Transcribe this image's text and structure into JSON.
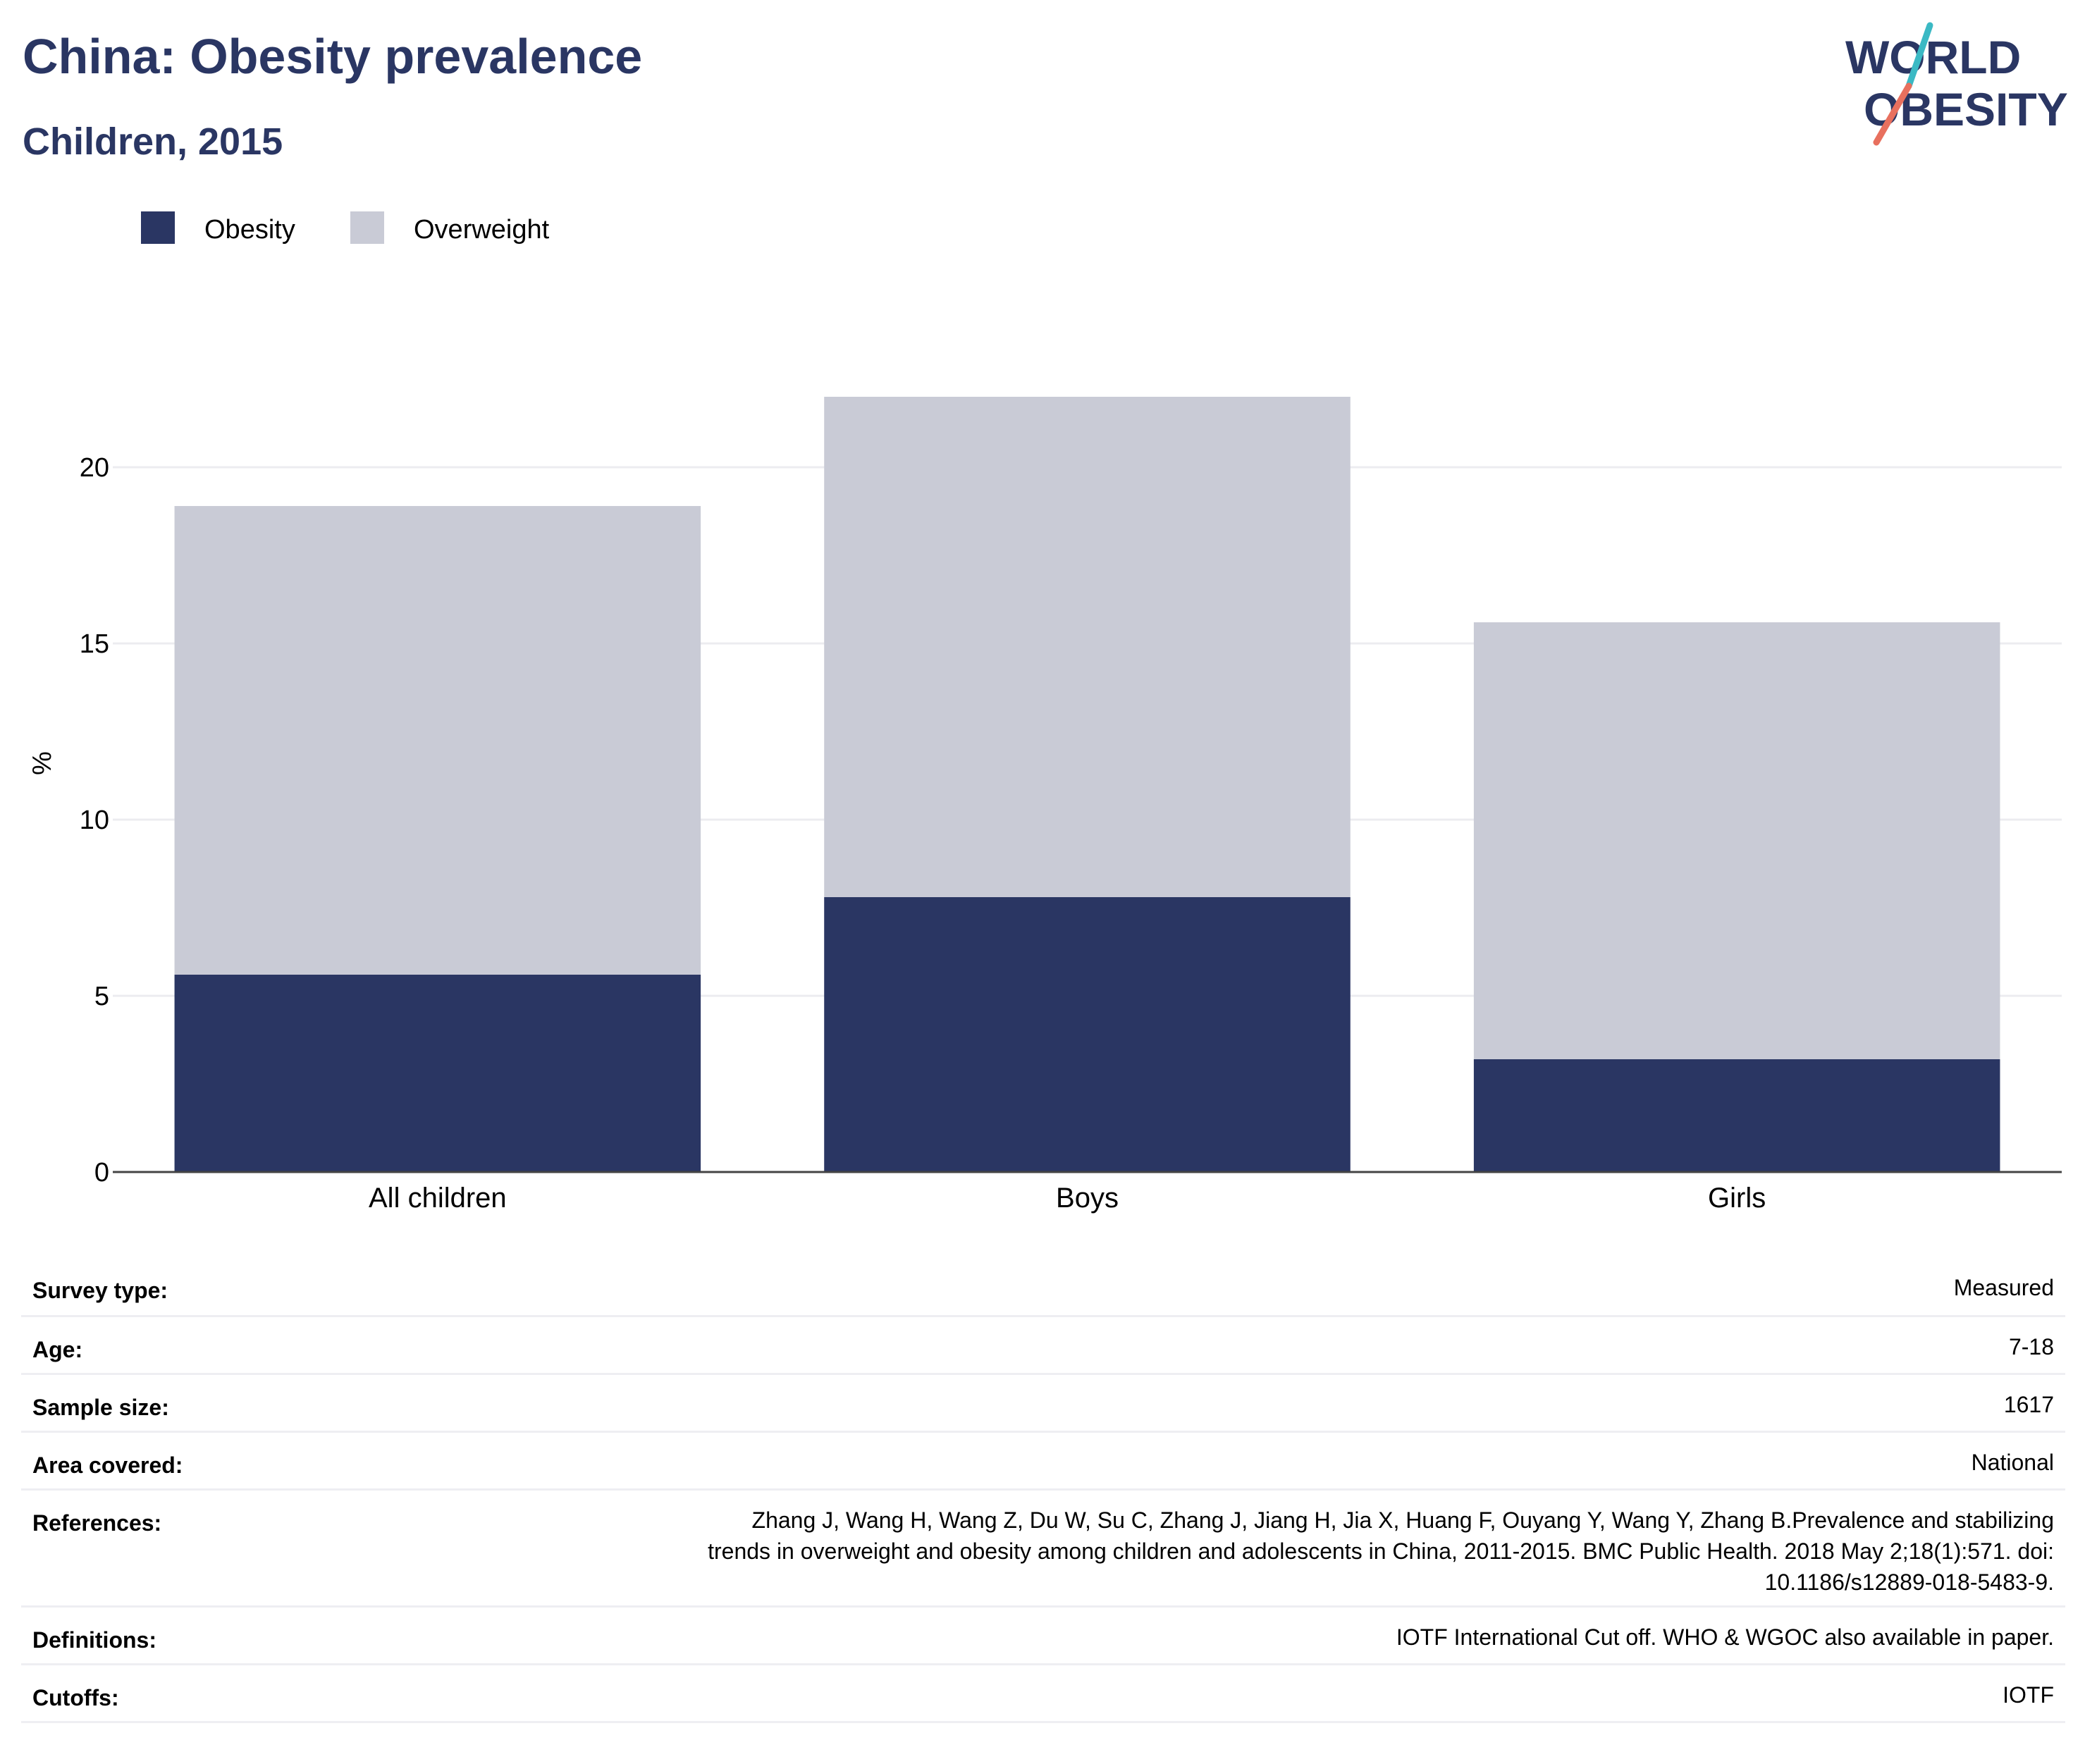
{
  "header": {
    "title": "China: Obesity prevalence",
    "subtitle": "Children, 2015"
  },
  "logo": {
    "line1": "WORLD",
    "line2": "OBESITY",
    "colors": {
      "text": "#2a3663",
      "slash_top": "#3bb9c4",
      "slash_bottom": "#e8705e"
    }
  },
  "chart_data": {
    "type": "bar",
    "stacked": true,
    "categories": [
      "All children",
      "Boys",
      "Girls"
    ],
    "series": [
      {
        "name": "Obesity",
        "color": "#2a3663",
        "values": [
          5.6,
          7.8,
          3.2
        ]
      },
      {
        "name": "Overweight",
        "color": "#c9cbd6",
        "values": [
          13.3,
          14.2,
          12.4
        ]
      }
    ],
    "ylabel": "%",
    "ylim": [
      0,
      22.5
    ],
    "yticks": [
      0,
      5,
      10,
      15,
      20
    ],
    "grid": true,
    "legend_position": "top-left"
  },
  "meta": [
    {
      "key": "Survey type:",
      "value": "Measured"
    },
    {
      "key": "Age:",
      "value": "7-18"
    },
    {
      "key": "Sample size:",
      "value": "1617"
    },
    {
      "key": "Area covered:",
      "value": "National"
    },
    {
      "key": "References:",
      "value": "Zhang J, Wang H, Wang Z, Du W, Su C, Zhang J, Jiang H, Jia X, Huang F, Ouyang Y, Wang Y, Zhang B.Prevalence and stabilizing trends in overweight and obesity among children and adolescents in China, 2011-2015. BMC Public Health. 2018 May 2;18(1):571. doi: 10.1186/s12889-018-5483-9."
    },
    {
      "key": "Definitions:",
      "value": "IOTF International Cut off. WHO & WGOC also available in paper."
    },
    {
      "key": "Cutoffs:",
      "value": "IOTF"
    }
  ]
}
